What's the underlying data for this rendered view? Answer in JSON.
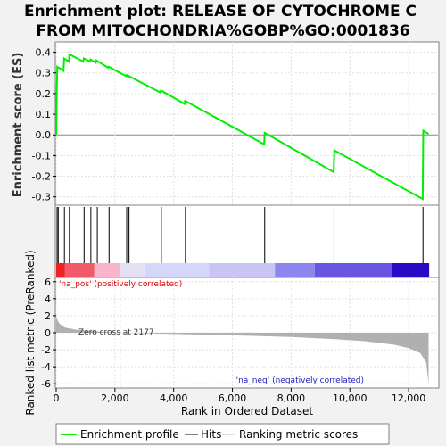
{
  "chart_data": {
    "type": "line",
    "title_lines": [
      "Enrichment plot: RELEASE OF CYTOCHROME C",
      "FROM MITOCHONDRIA%GOBP%GO:0001836"
    ],
    "es_panel": {
      "ylabel": "Enrichment score (ES)",
      "ylim": [
        -0.34,
        0.45
      ],
      "yticks": [
        -0.3,
        -0.2,
        -0.1,
        0.0,
        0.1,
        0.2,
        0.3,
        0.4
      ],
      "ytick_labels": [
        "-0.3",
        "-0.2",
        "-0.1",
        "0.0",
        "0.1",
        "0.2",
        "0.3",
        "0.4"
      ],
      "profile": [
        [
          0,
          0.0
        ],
        [
          20,
          0.23
        ],
        [
          40,
          0.33
        ],
        [
          250,
          0.31
        ],
        [
          270,
          0.37
        ],
        [
          430,
          0.355
        ],
        [
          450,
          0.39
        ],
        [
          920,
          0.355
        ],
        [
          940,
          0.37
        ],
        [
          1150,
          0.355
        ],
        [
          1170,
          0.365
        ],
        [
          1350,
          0.35
        ],
        [
          1370,
          0.36
        ],
        [
          1770,
          0.325
        ],
        [
          1790,
          0.33
        ],
        [
          2370,
          0.285
        ],
        [
          2390,
          0.29
        ],
        [
          2450,
          0.28
        ],
        [
          2470,
          0.285
        ],
        [
          3550,
          0.205
        ],
        [
          3570,
          0.215
        ],
        [
          4370,
          0.15
        ],
        [
          4390,
          0.165
        ],
        [
          7080,
          -0.045
        ],
        [
          7100,
          0.01
        ],
        [
          9450,
          -0.18
        ],
        [
          9470,
          -0.075
        ],
        [
          12480,
          -0.31
        ],
        [
          12500,
          0.02
        ],
        [
          12680,
          0.005
        ]
      ]
    },
    "hits": [
      30,
      70,
      280,
      450,
      950,
      1180,
      1400,
      1800,
      2400,
      2450,
      2480,
      3580,
      4400,
      7100,
      9460,
      12490
    ],
    "heatmap": {
      "segments": [
        {
          "from": 0,
          "to": 300,
          "color": "#ee2222"
        },
        {
          "from": 300,
          "to": 1300,
          "color": "#f25a6a"
        },
        {
          "from": 1300,
          "to": 2177,
          "color": "#f7b4cc"
        },
        {
          "from": 2177,
          "to": 3000,
          "color": "#e4e0f4"
        },
        {
          "from": 3000,
          "to": 5200,
          "color": "#d6d6f8"
        },
        {
          "from": 5200,
          "to": 7450,
          "color": "#c8c4f6"
        },
        {
          "from": 7450,
          "to": 8800,
          "color": "#8a86ee"
        },
        {
          "from": 8800,
          "to": 11450,
          "color": "#6856e2"
        },
        {
          "from": 11450,
          "to": 12700,
          "color": "#2a0ac4"
        }
      ]
    },
    "metric_panel": {
      "ylabel": "Ranked list metric (PreRanked)",
      "ylim": [
        -6.5,
        6.5
      ],
      "yticks": [
        -6,
        -4,
        -2,
        0,
        2,
        4,
        6
      ],
      "ytick_labels": [
        "-6",
        "-4",
        "-2",
        "0",
        "2",
        "4",
        "6"
      ],
      "metric_curve": [
        [
          0,
          1.8
        ],
        [
          100,
          1.1
        ],
        [
          300,
          0.6
        ],
        [
          700,
          0.35
        ],
        [
          1200,
          0.2
        ],
        [
          2177,
          0.0
        ],
        [
          4000,
          -0.15
        ],
        [
          6000,
          -0.3
        ],
        [
          8000,
          -0.5
        ],
        [
          9500,
          -0.75
        ],
        [
          10500,
          -1.0
        ],
        [
          11500,
          -1.4
        ],
        [
          12000,
          -1.8
        ],
        [
          12400,
          -2.4
        ],
        [
          12600,
          -3.5
        ],
        [
          12680,
          -6.0
        ]
      ],
      "zero_cross_rank": 2177,
      "zero_cross_label": "Zero cross at 2177",
      "pos_label": "'na_pos' (positively correlated)",
      "neg_label": "'na_neg' (negatively correlated)"
    },
    "x_axis": {
      "xlabel": "Rank in Ordered Dataset",
      "xlim": [
        0,
        13000
      ],
      "xticks": [
        0,
        2000,
        4000,
        6000,
        8000,
        10000,
        12000
      ],
      "xtick_labels": [
        "0",
        "2,000",
        "4,000",
        "6,000",
        "8,000",
        "10,000",
        "12,000"
      ]
    },
    "legend": {
      "placement": "bottom",
      "entries": [
        {
          "label": "Enrichment profile",
          "color": "#00ee00"
        },
        {
          "label": "Hits",
          "color": "#000000"
        },
        {
          "label": "Ranking metric scores",
          "color": "#bbbbbb"
        }
      ]
    },
    "colors": {
      "profile": "#00ee00",
      "pos_label": "#e00000",
      "neg_label": "#2020c0",
      "metric_fill": "#b0b0b0"
    }
  }
}
